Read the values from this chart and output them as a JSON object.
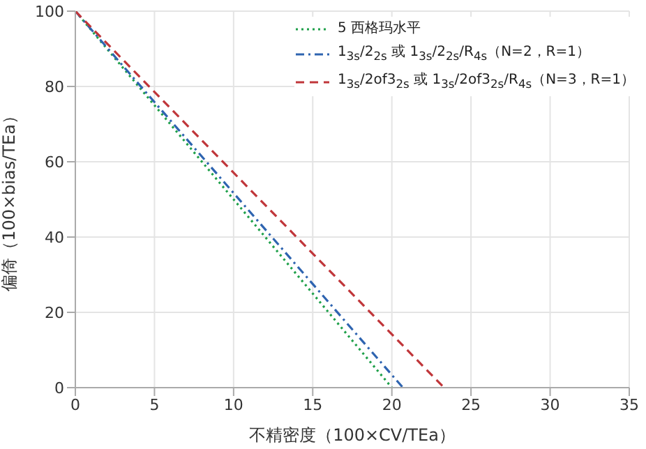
{
  "chart_data": {
    "type": "line",
    "xlabel": "不精密度（100×CV/TEa）",
    "ylabel": "偏倚（100×bias/TEa）",
    "series": [
      {
        "name": "5 西格玛水平",
        "color": "#1fa04a",
        "line_style": "dotted",
        "x": [
          0,
          20
        ],
        "values": [
          100,
          0
        ]
      },
      {
        "name": "1$_{3s}$/2$_{2s}$ 或 1$_{3s}$/2$_{2s}$/R$_{4s}$（N=2，R=1）",
        "color": "#2e64b0",
        "line_style": "dashdot",
        "x": [
          0,
          20.7
        ],
        "values": [
          100,
          0
        ]
      },
      {
        "name": "1$_{3s}$/2of3$_{2s}$ 或 1$_{3s}$/2of3$_{2s}$/R$_{4s}$（N=3，R=1）",
        "color": "#c0363a",
        "line_style": "dashed",
        "x": [
          0,
          23.3
        ],
        "values": [
          100,
          0
        ]
      }
    ],
    "xlim": [
      0,
      35
    ],
    "xticks": [
      0,
      5,
      10,
      15,
      20,
      25,
      30,
      35
    ],
    "ylim": [
      0,
      100
    ],
    "yticks": [
      0,
      20,
      40,
      60,
      80,
      100
    ],
    "grid": true,
    "legend": "top right",
    "marker": "none"
  }
}
